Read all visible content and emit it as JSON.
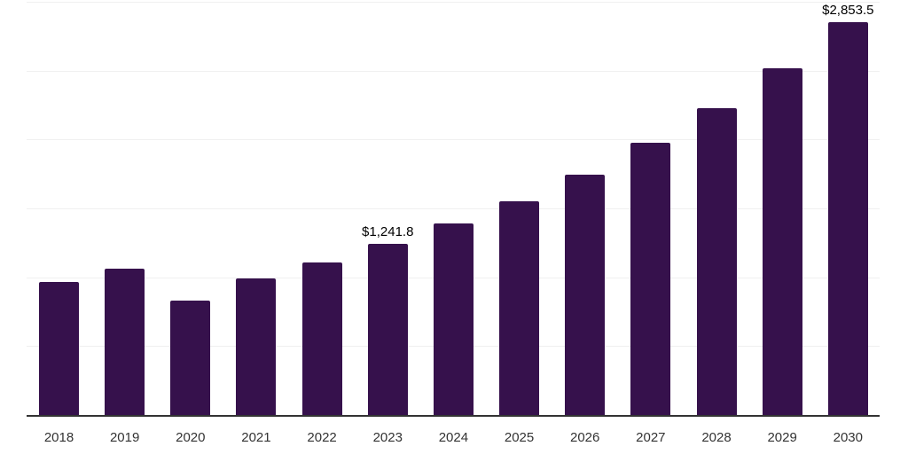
{
  "chart_data": {
    "type": "bar",
    "title": "",
    "xlabel": "",
    "ylabel": "",
    "categories": [
      "2018",
      "2019",
      "2020",
      "2021",
      "2022",
      "2023",
      "2024",
      "2025",
      "2026",
      "2027",
      "2028",
      "2029",
      "2030"
    ],
    "values": [
      965,
      1065,
      830,
      990,
      1110,
      1241.8,
      1390,
      1550,
      1745,
      1975,
      2225,
      2515,
      2853.5
    ],
    "bar_labels": [
      "",
      "",
      "",
      "",
      "",
      "$1,241.8",
      "",
      "",
      "",
      "",
      "",
      "",
      "$2,853.5"
    ],
    "ylim": [
      0,
      3000
    ],
    "gridline_values": [
      500,
      1000,
      1500,
      2000,
      2500,
      3000
    ],
    "grid": "horizontal",
    "legend": "none",
    "y_axis_labels_visible": false,
    "colors": {
      "bar": "#36114c",
      "axis": "#333333",
      "gridline": "#f0f0f0",
      "tick_label": "#333333",
      "data_label": "#000000",
      "background": "#ffffff"
    }
  }
}
